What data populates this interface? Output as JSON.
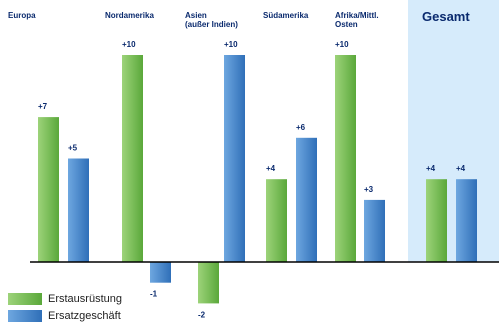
{
  "chart_data": {
    "type": "bar",
    "categories": [
      "Europa",
      "Nordamerika",
      "Asien\n(außer Indien)",
      "Südamerika",
      "Afrika/Mittl.\nOsten",
      "Gesamt"
    ],
    "series": [
      {
        "name": "Erstausrüstung",
        "values": [
          7,
          10,
          -2,
          4,
          10,
          4
        ],
        "labels": [
          "+7",
          "+10",
          "-2",
          "+4",
          "+10",
          "+4"
        ]
      },
      {
        "name": "Ersatzgeschäft",
        "values": [
          5,
          -1,
          10,
          6,
          3,
          4
        ],
        "labels": [
          "+5",
          "-1",
          "+10",
          "+6",
          "+3",
          "+4"
        ]
      }
    ],
    "ylim": [
      -3,
      12
    ],
    "grid": false,
    "legend_position": "bottom-left",
    "highlighted_category": "Gesamt"
  },
  "colors": {
    "green_light": "#9dd37a",
    "green_dark": "#5aa83a",
    "blue_light": "#6ea7e0",
    "blue_dark": "#2f6fb8",
    "label": "#0a2a6e",
    "highlight_bg": "#d6ebfb",
    "axis": "#000000"
  }
}
